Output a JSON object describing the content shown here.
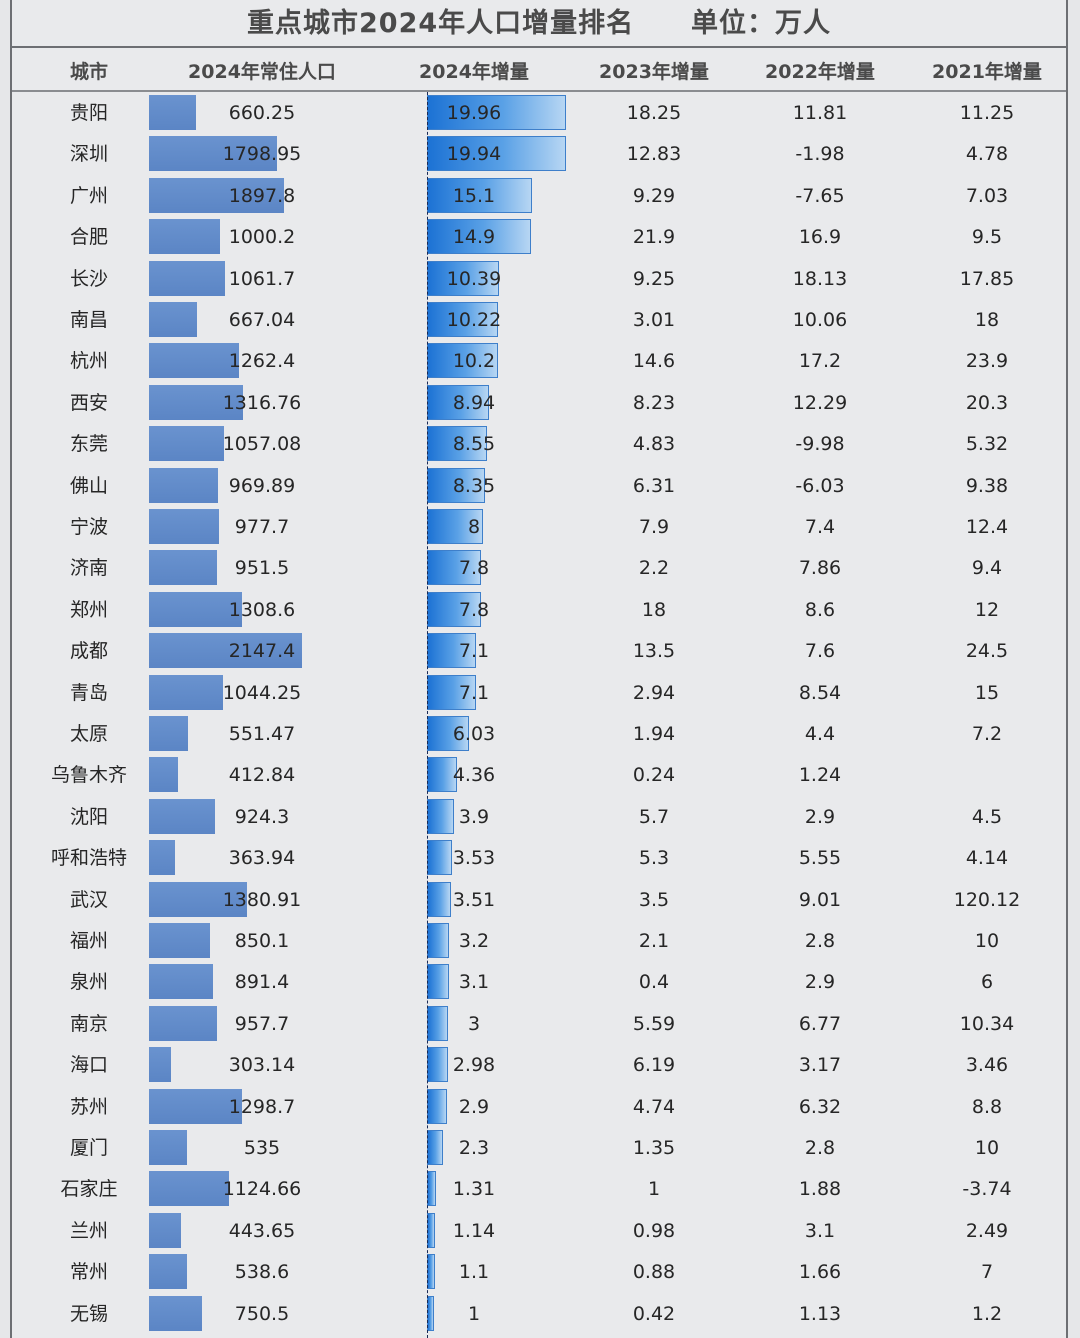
{
  "title": "重点城市2024年人口增量排名",
  "unit": "单位：万人",
  "chart_data": {
    "type": "table",
    "columns": [
      "城市",
      "2024年常住人口",
      "2024年增量",
      "2023年增量",
      "2022年增量",
      "2021年增量"
    ],
    "rows": [
      {
        "city": "贵阳",
        "pop2024": "660.25",
        "inc2024": "19.96",
        "inc2023": "18.25",
        "inc2022": "11.81",
        "inc2021": "11.25"
      },
      {
        "city": "深圳",
        "pop2024": "1798.95",
        "inc2024": "19.94",
        "inc2023": "12.83",
        "inc2022": "-1.98",
        "inc2021": "4.78"
      },
      {
        "city": "广州",
        "pop2024": "1897.8",
        "inc2024": "15.1",
        "inc2023": "9.29",
        "inc2022": "-7.65",
        "inc2021": "7.03"
      },
      {
        "city": "合肥",
        "pop2024": "1000.2",
        "inc2024": "14.9",
        "inc2023": "21.9",
        "inc2022": "16.9",
        "inc2021": "9.5"
      },
      {
        "city": "长沙",
        "pop2024": "1061.7",
        "inc2024": "10.39",
        "inc2023": "9.25",
        "inc2022": "18.13",
        "inc2021": "17.85"
      },
      {
        "city": "南昌",
        "pop2024": "667.04",
        "inc2024": "10.22",
        "inc2023": "3.01",
        "inc2022": "10.06",
        "inc2021": "18"
      },
      {
        "city": "杭州",
        "pop2024": "1262.4",
        "inc2024": "10.2",
        "inc2023": "14.6",
        "inc2022": "17.2",
        "inc2021": "23.9"
      },
      {
        "city": "西安",
        "pop2024": "1316.76",
        "inc2024": "8.94",
        "inc2023": "8.23",
        "inc2022": "12.29",
        "inc2021": "20.3"
      },
      {
        "city": "东莞",
        "pop2024": "1057.08",
        "inc2024": "8.55",
        "inc2023": "4.83",
        "inc2022": "-9.98",
        "inc2021": "5.32"
      },
      {
        "city": "佛山",
        "pop2024": "969.89",
        "inc2024": "8.35",
        "inc2023": "6.31",
        "inc2022": "-6.03",
        "inc2021": "9.38"
      },
      {
        "city": "宁波",
        "pop2024": "977.7",
        "inc2024": "8",
        "inc2023": "7.9",
        "inc2022": "7.4",
        "inc2021": "12.4"
      },
      {
        "city": "济南",
        "pop2024": "951.5",
        "inc2024": "7.8",
        "inc2023": "2.2",
        "inc2022": "7.86",
        "inc2021": "9.4"
      },
      {
        "city": "郑州",
        "pop2024": "1308.6",
        "inc2024": "7.8",
        "inc2023": "18",
        "inc2022": "8.6",
        "inc2021": "12"
      },
      {
        "city": "成都",
        "pop2024": "2147.4",
        "inc2024": "7.1",
        "inc2023": "13.5",
        "inc2022": "7.6",
        "inc2021": "24.5"
      },
      {
        "city": "青岛",
        "pop2024": "1044.25",
        "inc2024": "7.1",
        "inc2023": "2.94",
        "inc2022": "8.54",
        "inc2021": "15"
      },
      {
        "city": "太原",
        "pop2024": "551.47",
        "inc2024": "6.03",
        "inc2023": "1.94",
        "inc2022": "4.4",
        "inc2021": "7.2"
      },
      {
        "city": "乌鲁木齐",
        "pop2024": "412.84",
        "inc2024": "4.36",
        "inc2023": "0.24",
        "inc2022": "1.24",
        "inc2021": ""
      },
      {
        "city": "沈阳",
        "pop2024": "924.3",
        "inc2024": "3.9",
        "inc2023": "5.7",
        "inc2022": "2.9",
        "inc2021": "4.5"
      },
      {
        "city": "呼和浩特",
        "pop2024": "363.94",
        "inc2024": "3.53",
        "inc2023": "5.3",
        "inc2022": "5.55",
        "inc2021": "4.14"
      },
      {
        "city": "武汉",
        "pop2024": "1380.91",
        "inc2024": "3.51",
        "inc2023": "3.5",
        "inc2022": "9.01",
        "inc2021": "120.12"
      },
      {
        "city": "福州",
        "pop2024": "850.1",
        "inc2024": "3.2",
        "inc2023": "2.1",
        "inc2022": "2.8",
        "inc2021": "10"
      },
      {
        "city": "泉州",
        "pop2024": "891.4",
        "inc2024": "3.1",
        "inc2023": "0.4",
        "inc2022": "2.9",
        "inc2021": "6"
      },
      {
        "city": "南京",
        "pop2024": "957.7",
        "inc2024": "3",
        "inc2023": "5.59",
        "inc2022": "6.77",
        "inc2021": "10.34"
      },
      {
        "city": "海口",
        "pop2024": "303.14",
        "inc2024": "2.98",
        "inc2023": "6.19",
        "inc2022": "3.17",
        "inc2021": "3.46"
      },
      {
        "city": "苏州",
        "pop2024": "1298.7",
        "inc2024": "2.9",
        "inc2023": "4.74",
        "inc2022": "6.32",
        "inc2021": "8.8"
      },
      {
        "city": "厦门",
        "pop2024": "535",
        "inc2024": "2.3",
        "inc2023": "1.35",
        "inc2022": "2.8",
        "inc2021": "10"
      },
      {
        "city": "石家庄",
        "pop2024": "1124.66",
        "inc2024": "1.31",
        "inc2023": "1",
        "inc2022": "1.88",
        "inc2021": "-3.74"
      },
      {
        "city": "兰州",
        "pop2024": "443.65",
        "inc2024": "1.14",
        "inc2023": "0.98",
        "inc2022": "3.1",
        "inc2021": "2.49"
      },
      {
        "city": "常州",
        "pop2024": "538.6",
        "inc2024": "1.1",
        "inc2023": "0.88",
        "inc2022": "1.66",
        "inc2021": "7"
      },
      {
        "city": "无锡",
        "pop2024": "750.5",
        "inc2024": "1",
        "inc2023": "0.42",
        "inc2022": "1.13",
        "inc2021": "1.2"
      }
    ]
  },
  "colors": {
    "population_bar": "#5f89c8",
    "increase_bar_start": "#1c72d4",
    "increase_bar_end": "#b7d6f3",
    "border": "#6d6f73"
  }
}
